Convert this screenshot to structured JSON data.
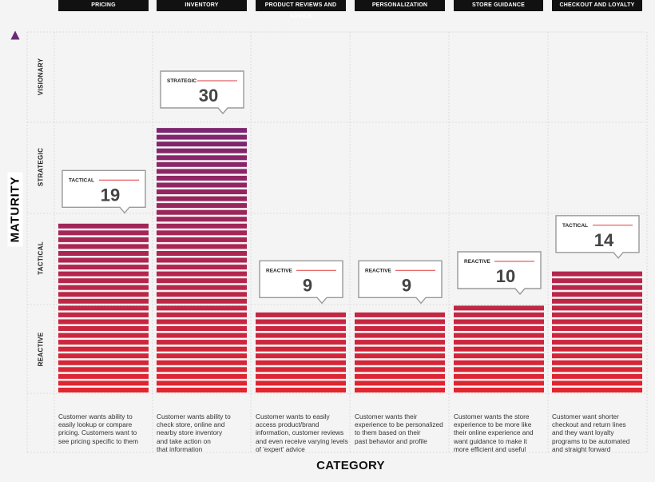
{
  "chart_data": {
    "type": "bar",
    "xlabel": "CATEGORY",
    "ylabel": "MATURITY",
    "levels": [
      "REACTIVE",
      "TACTICAL",
      "STRATEGIC",
      "VISIONARY"
    ],
    "categories": [
      {
        "label": "PRICING",
        "value": 19,
        "tag": "TACTICAL",
        "description": [
          "Customer wants ability to",
          "easily lookup or compare",
          "pricing. Customers want to",
          "see pricing specific to them"
        ]
      },
      {
        "label": "INVENTORY",
        "value": 30,
        "tag": "STRATEGIC",
        "description": [
          "Customer wants ability to",
          "check store, online and",
          "nearby store inventory",
          "and take action on",
          "that information"
        ]
      },
      {
        "label": "PRODUCT REVIEWS AND ADVICE",
        "value": 9,
        "tag": "REACTIVE",
        "description": [
          "Customer wants to easily",
          "access product/brand",
          "information, customer reviews",
          "and even receive varying levels",
          "of 'expert' advice"
        ]
      },
      {
        "label": "PERSONALIZATION",
        "value": 9,
        "tag": "REACTIVE",
        "description": [
          "Customer wants their",
          "experience to be personalized",
          "to them based on their",
          "past behavior and profile"
        ]
      },
      {
        "label": "STORE GUIDANCE",
        "value": 10,
        "tag": "REACTIVE",
        "description": [
          "Customer wants the store",
          "experience to be more like",
          "their online experience and",
          "want guidance to make it",
          "more efficient and useful"
        ]
      },
      {
        "label": "CHECKOUT AND LOYALTY",
        "value": 14,
        "tag": "TACTICAL",
        "description": [
          "Customer want shorter",
          "checkout and return lines",
          "and they want loyalty",
          "programs to be automated",
          "and straight forward"
        ]
      }
    ],
    "ylim": [
      0,
      40
    ],
    "grid": true,
    "colors": {
      "low": "#e3262f",
      "high": "#7a2671",
      "accent": "#e03a3e",
      "ink": "#111111"
    }
  }
}
